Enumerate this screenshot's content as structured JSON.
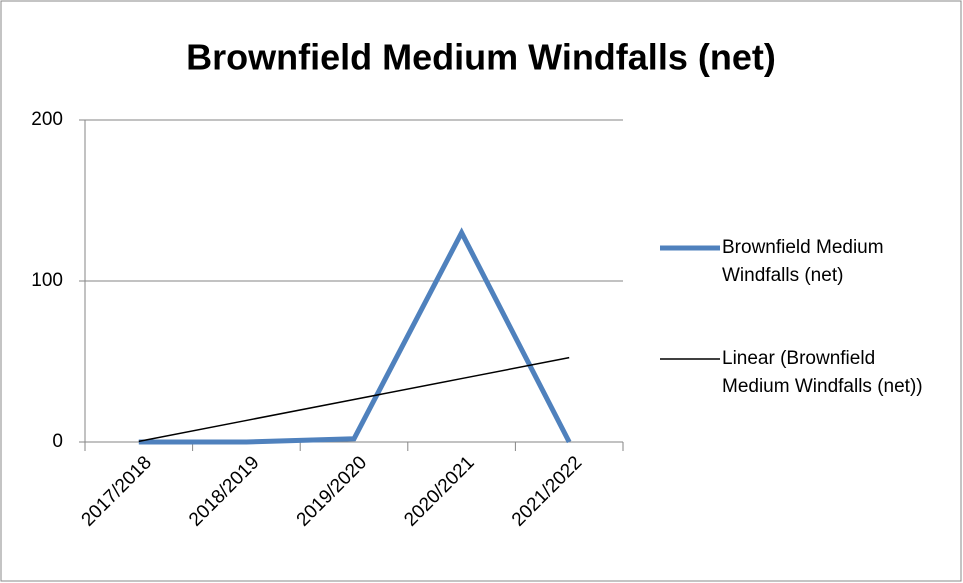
{
  "chart_data": {
    "type": "line",
    "title": "Brownfield Medium Windfalls (net)",
    "categories": [
      "2017/2018",
      "2018/2019",
      "2019/2020",
      "2020/2021",
      "2021/2022"
    ],
    "series": [
      {
        "name": "Brownfield Medium Windfalls (net)",
        "color": "#4f81bd",
        "values": [
          0,
          0,
          2,
          130,
          0
        ]
      },
      {
        "name": "Linear (Brownfield Medium Windfalls (net))",
        "color": "#000000",
        "values": [
          0.4,
          13.4,
          26.4,
          39.4,
          52.4
        ]
      }
    ],
    "ylim": [
      0,
      200
    ],
    "yticks": [
      0,
      100,
      200
    ],
    "grid": true,
    "legend": "right"
  }
}
